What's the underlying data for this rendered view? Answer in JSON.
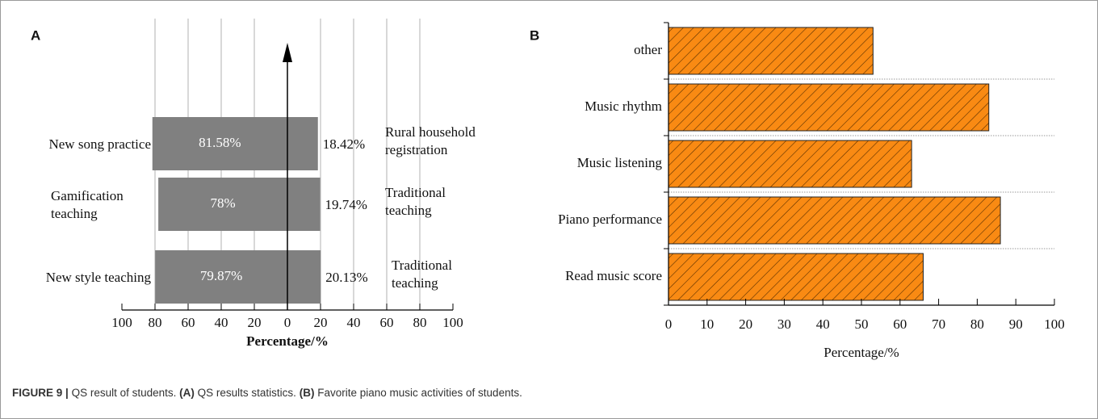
{
  "panels": [
    {
      "label": "A",
      "chart_data": {
        "type": "diverging-bar",
        "categories": [
          "New song practice",
          "Gamification teaching",
          "New style teaching"
        ],
        "right_categories": [
          "Rural household registration",
          "Traditional teaching",
          "Traditional teaching"
        ],
        "series": [
          {
            "color": "#808080",
            "values": [
              -81.58,
              -78,
              -79.87
            ],
            "value_labels": [
              "81.58%",
              "78%",
              "79.87%"
            ]
          },
          {
            "color": "#808080",
            "values": [
              18.42,
              19.74,
              20.13
            ],
            "value_labels": [
              "18.42%",
              "19.74%",
              "20.13%"
            ]
          }
        ],
        "x_label": "Percentage/%",
        "xlim": [
          -100,
          100
        ],
        "xticks": [
          {
            "value": -100,
            "label": "100"
          },
          {
            "value": -80,
            "label": "80"
          },
          {
            "value": -60,
            "label": "60"
          },
          {
            "value": -40,
            "label": "40"
          },
          {
            "value": -20,
            "label": "20"
          },
          0,
          20,
          40,
          60,
          80,
          100
        ],
        "grid": true
      }
    },
    {
      "label": "B",
      "chart_data": {
        "type": "hbar",
        "categories": [
          "Read music score",
          "Piano performance",
          "Music listening",
          "Music rhythm",
          "other"
        ],
        "values": [
          66,
          86,
          63,
          83,
          53
        ],
        "color": "#f98a13",
        "x_label": "Percentage/%",
        "xlim": [
          0,
          100
        ],
        "xticks": [
          0,
          10,
          20,
          30,
          40,
          50,
          60,
          70,
          80,
          90,
          100
        ]
      }
    }
  ],
  "caption": {
    "figure": "FIGURE 9 |",
    "text1": "QS result of students.",
    "a": "(A)",
    "text2": "QS results statistics.",
    "b": "(B)",
    "text3": "Favorite piano music activities of students."
  }
}
